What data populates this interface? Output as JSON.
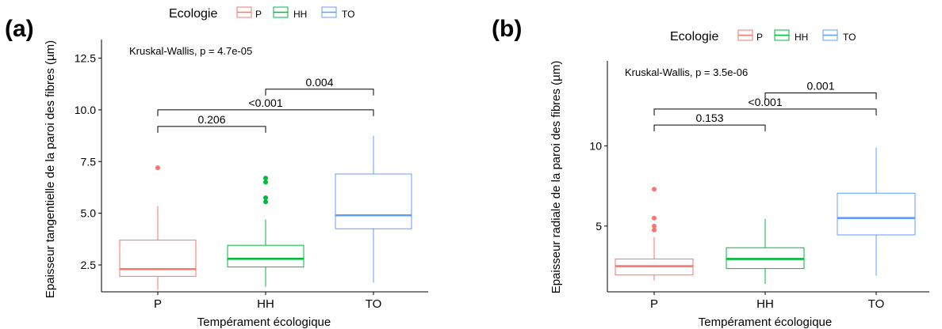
{
  "chart_data": [
    {
      "panel_label": "(a)",
      "type": "box",
      "legend": {
        "title": "Ecologie",
        "position": "top",
        "entries": [
          "P",
          "HH",
          "TO"
        ]
      },
      "xlabel": "Tempérament écologique",
      "ylabel": "Epaisseur tangentielle de la paroi des fibres (µm)",
      "ylim": [
        1.2,
        13.4
      ],
      "yticks": [
        "2.5",
        "5.0",
        "7.5",
        "10.0",
        "12.5"
      ],
      "ytick_values": [
        2.5,
        5.0,
        7.5,
        10.0,
        12.5
      ],
      "categories": [
        "P",
        "HH",
        "TO"
      ],
      "colors": [
        "#F8766D",
        "#00BA38",
        "#619CFF"
      ],
      "boxes": [
        {
          "name": "P",
          "min": 1.3,
          "q1": 1.95,
          "median": 2.3,
          "q3": 3.7,
          "max": 5.35,
          "outliers": [
            7.2
          ]
        },
        {
          "name": "HH",
          "min": 1.45,
          "q1": 2.4,
          "median": 2.8,
          "q3": 3.45,
          "max": 4.7,
          "outliers": [
            5.55,
            5.75,
            6.5,
            6.7
          ]
        },
        {
          "name": "TO",
          "min": 1.65,
          "q1": 4.25,
          "median": 4.9,
          "q3": 6.9,
          "max": 8.75,
          "outliers": []
        }
      ],
      "annotations": {
        "test": "Kruskal-Wallis, p = 4.7e-05",
        "comparisons": [
          {
            "from": "P",
            "to": "HH",
            "label": "0.206",
            "y": 9.2
          },
          {
            "from": "P",
            "to": "TO",
            "label": "<0.001",
            "y": 10.0
          },
          {
            "from": "HH",
            "to": "TO",
            "label": "0.004",
            "y": 11.0
          }
        ]
      }
    },
    {
      "panel_label": "(b)",
      "type": "box",
      "legend": {
        "title": "Ecologie",
        "position": "top",
        "entries": [
          "P",
          "HH",
          "TO"
        ]
      },
      "xlabel": "Tempérament écologique",
      "ylabel": "Epaisseur radiale de la paroi des fibres (µm)",
      "ylim": [
        0.9,
        15.3
      ],
      "yticks": [
        "5",
        "10"
      ],
      "ytick_values": [
        5,
        10
      ],
      "categories": [
        "P",
        "HH",
        "TO"
      ],
      "colors": [
        "#F8766D",
        "#00BA38",
        "#619CFF"
      ],
      "boxes": [
        {
          "name": "P",
          "min": 1.6,
          "q1": 1.95,
          "median": 2.5,
          "q3": 2.95,
          "max": 4.3,
          "outliers": [
            4.75,
            5.0,
            5.5,
            7.3
          ]
        },
        {
          "name": "HH",
          "min": 1.4,
          "q1": 2.35,
          "median": 2.95,
          "q3": 3.65,
          "max": 5.45,
          "outliers": []
        },
        {
          "name": "TO",
          "min": 1.9,
          "q1": 4.45,
          "median": 5.5,
          "q3": 7.05,
          "max": 9.9,
          "outliers": []
        }
      ],
      "annotations": {
        "test": "Kruskal-Wallis, p = 3.5e-06",
        "comparisons": [
          {
            "from": "P",
            "to": "HH",
            "label": "0.153",
            "y": 11.3
          },
          {
            "from": "P",
            "to": "TO",
            "label": "<0.001",
            "y": 12.3
          },
          {
            "from": "HH",
            "to": "TO",
            "label": "0.001",
            "y": 13.3
          }
        ]
      }
    }
  ]
}
